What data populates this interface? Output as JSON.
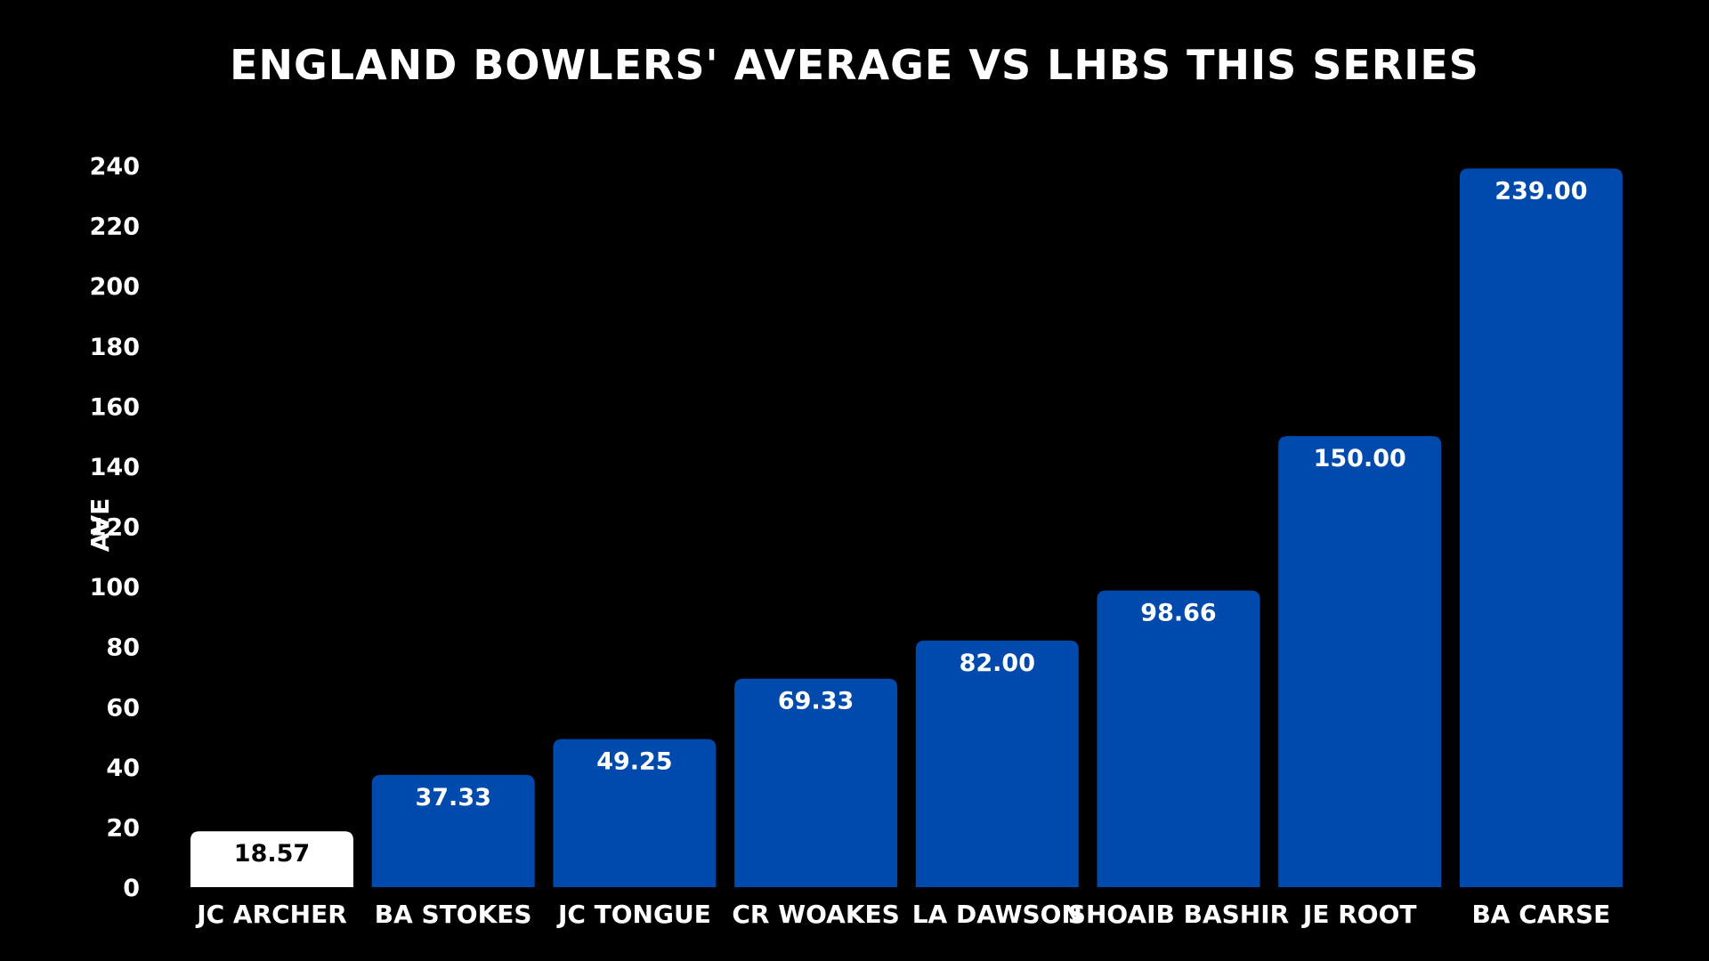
{
  "chart_data": {
    "type": "bar",
    "title": "ENGLAND BOWLERS' AVERAGE VS LHBS THIS SERIES",
    "xlabel": "",
    "ylabel": "AVE",
    "ylim": [
      0,
      240
    ],
    "yticks": [
      0,
      20,
      40,
      60,
      80,
      100,
      120,
      140,
      160,
      180,
      200,
      220,
      240
    ],
    "categories": [
      "JC ARCHER",
      "BA STOKES",
      "JC TONGUE",
      "CR WOAKES",
      "LA DAWSON",
      "SHOAIB BASHIR",
      "JE ROOT",
      "BA CARSE"
    ],
    "values": [
      18.57,
      37.33,
      49.25,
      69.33,
      82.0,
      98.66,
      150.0,
      239.0
    ],
    "value_labels": [
      "18.57",
      "37.33",
      "49.25",
      "69.33",
      "82.00",
      "98.66",
      "150.00",
      "239.00"
    ],
    "highlight_index": 0,
    "grid": false,
    "legend": "none",
    "colors": {
      "background": "#000000",
      "bar": "#004aad",
      "highlight_bar": "#ffffff",
      "text": "#ffffff",
      "highlight_label": "#000000"
    }
  }
}
